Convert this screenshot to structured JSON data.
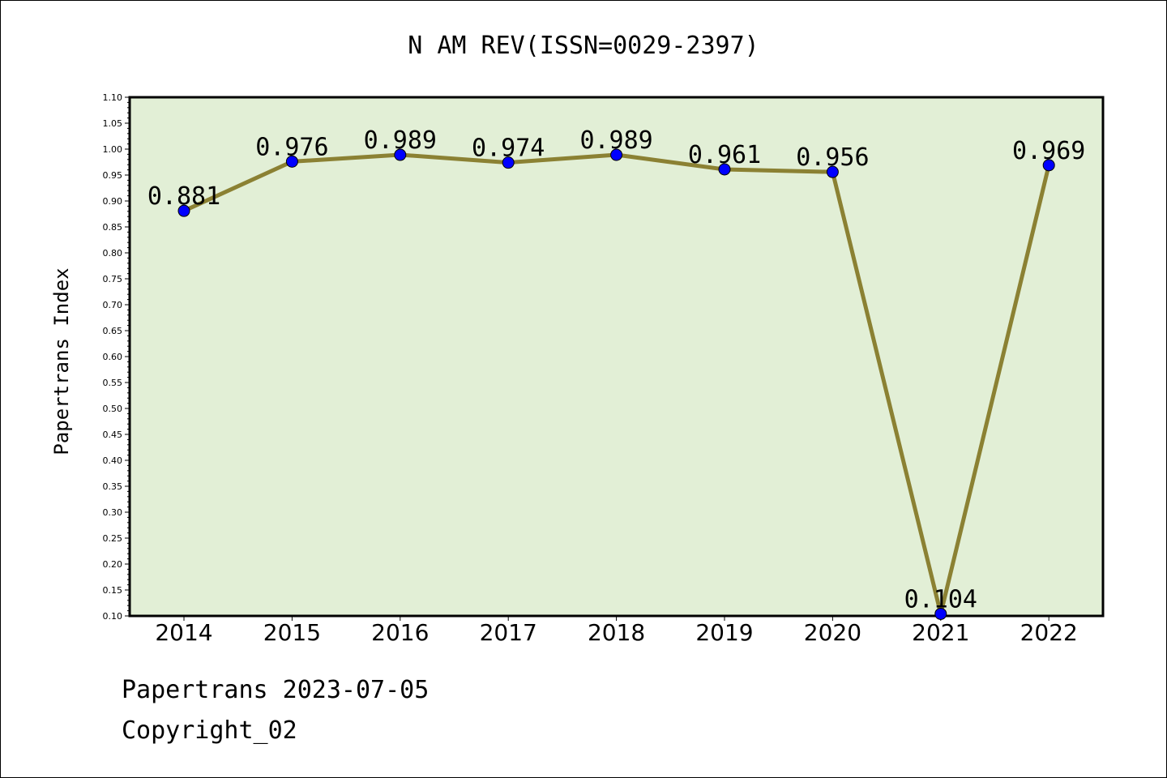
{
  "chart_data": {
    "type": "line",
    "title": "N AM REV(ISSN=0029-2397)",
    "xlabel": "",
    "ylabel": "Papertrans Index",
    "categories": [
      "2014",
      "2015",
      "2016",
      "2017",
      "2018",
      "2019",
      "2020",
      "2021",
      "2022"
    ],
    "series": [
      {
        "values": [
          0.881,
          0.976,
          0.989,
          0.974,
          0.989,
          0.961,
          0.956,
          0.104,
          0.969
        ]
      }
    ],
    "data_labels": [
      "0.881",
      "0.976",
      "0.989",
      "0.974",
      "0.989",
      "0.961",
      "0.956",
      "0.104",
      "0.969"
    ],
    "ylim": [
      0.1,
      1.1
    ],
    "yticks": [
      "0.10",
      "0.15",
      "0.20",
      "0.25",
      "0.30",
      "0.35",
      "0.40",
      "0.45",
      "0.50",
      "0.55",
      "0.60",
      "0.65",
      "0.70",
      "0.75",
      "0.80",
      "0.85",
      "0.90",
      "0.95",
      "1.00",
      "1.05",
      "1.10"
    ],
    "grid": false,
    "legend": "none",
    "colors": {
      "plot_bg": "#e2efd6",
      "line": "#8b8133",
      "marker": "#0000ff"
    }
  },
  "footer": {
    "line1": "Papertrans 2023-07-05",
    "line2": "Copyright_02"
  }
}
